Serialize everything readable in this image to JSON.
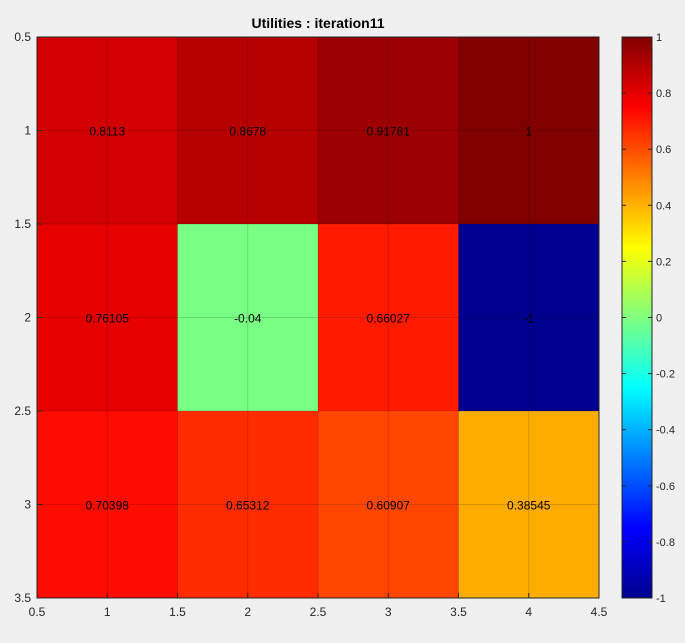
{
  "chart_data": {
    "type": "heatmap",
    "title": "Utilities : iteration11",
    "xlabel": "",
    "ylabel": "",
    "xlim": [
      0.5,
      4.5
    ],
    "ylim": [
      0.5,
      3.5
    ],
    "x_ticks": [
      "0.5",
      "1",
      "1.5",
      "2",
      "2.5",
      "3",
      "3.5",
      "4",
      "4.5"
    ],
    "y_ticks": [
      "0.5",
      "1",
      "1.5",
      "2",
      "2.5",
      "3",
      "3.5"
    ],
    "y_direction": "reversed",
    "grid": true,
    "colormap": "jet",
    "clim": [
      -1,
      1
    ],
    "colorbar": {
      "placement": "right",
      "ticks": [
        "1",
        "0.8",
        "0.6",
        "0.4",
        "0.2",
        "0",
        "-0.2",
        "-0.4",
        "-0.6",
        "-0.8",
        "-1"
      ]
    },
    "cells": [
      [
        {
          "value": 0.8113,
          "label": "0.8113",
          "color": "#d20000"
        },
        {
          "value": 0.8678,
          "label": "0.8678",
          "color": "#b60000"
        },
        {
          "value": 0.91781,
          "label": "0.91781",
          "color": "#9d0000"
        },
        {
          "value": 1,
          "label": "1",
          "color": "#800000"
        }
      ],
      [
        {
          "value": 0.76105,
          "label": "0.76105",
          "color": "#e70000"
        },
        {
          "value": -0.04,
          "label": "-0.04",
          "color": "#7aff85"
        },
        {
          "value": 0.66027,
          "label": "0.66027",
          "color": "#ff1a00"
        },
        {
          "value": -1,
          "label": "-1",
          "color": "#00008f"
        }
      ],
      [
        {
          "value": 0.70398,
          "label": "0.70398",
          "color": "#ff0c00"
        },
        {
          "value": 0.65312,
          "label": "0.65312",
          "color": "#ff2c00"
        },
        {
          "value": 0.60907,
          "label": "0.60907",
          "color": "#ff4600"
        },
        {
          "value": 0.38545,
          "label": "0.38545",
          "color": "#ffac00"
        }
      ]
    ]
  }
}
